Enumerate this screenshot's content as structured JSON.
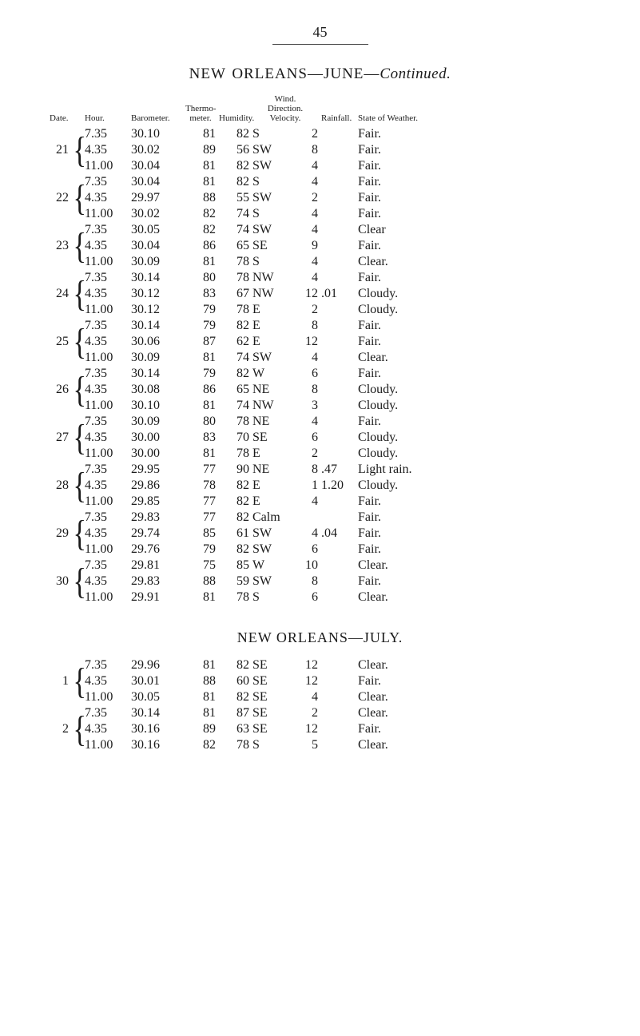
{
  "page_number": "45",
  "title_prefix": "NEW ORLEANS—JUNE—",
  "title_suffix_italic": "Continued.",
  "section2_title": "NEW ORLEANS—JULY.",
  "headers": {
    "date": "Date.",
    "hour": "Hour.",
    "barometer": "Barometer.",
    "thermo": "Thermo-\nmeter.",
    "humidity": "Humidity.",
    "wind": "Wind.",
    "wind_sub": "Direction. Velocity.",
    "rainfall": "Rainfall.",
    "state": "State of Weather."
  },
  "groups1": [
    {
      "date": "21",
      "rows": [
        {
          "hour": "7.35",
          "baro": "30.10",
          "thermo": "81",
          "humid": "82",
          "dir": "S",
          "vel": "2",
          "rain": "",
          "state": "Fair."
        },
        {
          "hour": "4.35",
          "baro": "30.02",
          "thermo": "89",
          "humid": "56",
          "dir": "SW",
          "vel": "8",
          "rain": "",
          "state": "Fair."
        },
        {
          "hour": "11.00",
          "baro": "30.04",
          "thermo": "81",
          "humid": "82",
          "dir": "SW",
          "vel": "4",
          "rain": "",
          "state": "Fair."
        }
      ]
    },
    {
      "date": "22",
      "rows": [
        {
          "hour": "7.35",
          "baro": "30.04",
          "thermo": "81",
          "humid": "82",
          "dir": "S",
          "vel": "4",
          "rain": "",
          "state": "Fair."
        },
        {
          "hour": "4.35",
          "baro": "29.97",
          "thermo": "88",
          "humid": "55",
          "dir": "SW",
          "vel": "2",
          "rain": "",
          "state": "Fair."
        },
        {
          "hour": "11.00",
          "baro": "30.02",
          "thermo": "82",
          "humid": "74",
          "dir": "S",
          "vel": "4",
          "rain": "",
          "state": "Fair."
        }
      ]
    },
    {
      "date": "23",
      "rows": [
        {
          "hour": "7.35",
          "baro": "30.05",
          "thermo": "82",
          "humid": "74",
          "dir": "SW",
          "vel": "4",
          "rain": "",
          "state": "Clear"
        },
        {
          "hour": "4.35",
          "baro": "30.04",
          "thermo": "86",
          "humid": "65",
          "dir": "SE",
          "vel": "9",
          "rain": "",
          "state": "Fair."
        },
        {
          "hour": "11.00",
          "baro": "30.09",
          "thermo": "81",
          "humid": "78",
          "dir": "S",
          "vel": "4",
          "rain": "",
          "state": "Clear."
        }
      ]
    },
    {
      "date": "24",
      "rows": [
        {
          "hour": "7.35",
          "baro": "30.14",
          "thermo": "80",
          "humid": "78",
          "dir": "NW",
          "vel": "4",
          "rain": "",
          "state": "Fair."
        },
        {
          "hour": "4.35",
          "baro": "30.12",
          "thermo": "83",
          "humid": "67",
          "dir": "NW",
          "vel": "12",
          "rain": ".01",
          "state": "Cloudy."
        },
        {
          "hour": "11.00",
          "baro": "30.12",
          "thermo": "79",
          "humid": "78",
          "dir": "E",
          "vel": "2",
          "rain": "",
          "state": "Cloudy."
        }
      ]
    },
    {
      "date": "25",
      "rows": [
        {
          "hour": "7.35",
          "baro": "30.14",
          "thermo": "79",
          "humid": "82",
          "dir": "E",
          "vel": "8",
          "rain": "",
          "state": "Fair."
        },
        {
          "hour": "4.35",
          "baro": "30.06",
          "thermo": "87",
          "humid": "62",
          "dir": "E",
          "vel": "12",
          "rain": "",
          "state": "Fair."
        },
        {
          "hour": "11.00",
          "baro": "30.09",
          "thermo": "81",
          "humid": "74",
          "dir": "SW",
          "vel": "4",
          "rain": "",
          "state": "Clear."
        }
      ]
    },
    {
      "date": "26",
      "rows": [
        {
          "hour": "7.35",
          "baro": "30.14",
          "thermo": "79",
          "humid": "82",
          "dir": "W",
          "vel": "6",
          "rain": "",
          "state": "Fair."
        },
        {
          "hour": "4.35",
          "baro": "30.08",
          "thermo": "86",
          "humid": "65",
          "dir": "NE",
          "vel": "8",
          "rain": "",
          "state": "Cloudy."
        },
        {
          "hour": "11.00",
          "baro": "30.10",
          "thermo": "81",
          "humid": "74",
          "dir": "NW",
          "vel": "3",
          "rain": "",
          "state": "Cloudy."
        }
      ]
    },
    {
      "date": "27",
      "rows": [
        {
          "hour": "7.35",
          "baro": "30.09",
          "thermo": "80",
          "humid": "78",
          "dir": "NE",
          "vel": "4",
          "rain": "",
          "state": "Fair."
        },
        {
          "hour": "4.35",
          "baro": "30.00",
          "thermo": "83",
          "humid": "70",
          "dir": "SE",
          "vel": "6",
          "rain": "",
          "state": "Cloudy."
        },
        {
          "hour": "11.00",
          "baro": "30.00",
          "thermo": "81",
          "humid": "78",
          "dir": "E",
          "vel": "2",
          "rain": "",
          "state": "Cloudy."
        }
      ]
    },
    {
      "date": "28",
      "rows": [
        {
          "hour": "7.35",
          "baro": "29.95",
          "thermo": "77",
          "humid": "90",
          "dir": "NE",
          "vel": "8",
          "rain": ".47",
          "state": "Light rain."
        },
        {
          "hour": "4.35",
          "baro": "29.86",
          "thermo": "78",
          "humid": "82",
          "dir": "E",
          "vel": "1",
          "rain": "1.20",
          "state": "Cloudy."
        },
        {
          "hour": "11.00",
          "baro": "29.85",
          "thermo": "77",
          "humid": "82",
          "dir": "E",
          "vel": "4",
          "rain": "",
          "state": "Fair."
        }
      ]
    },
    {
      "date": "29",
      "rows": [
        {
          "hour": "7.35",
          "baro": "29.83",
          "thermo": "77",
          "humid": "82",
          "dir": "Calm",
          "vel": "",
          "rain": "",
          "state": "Fair."
        },
        {
          "hour": "4.35",
          "baro": "29.74",
          "thermo": "85",
          "humid": "61",
          "dir": "SW",
          "vel": "4",
          "rain": ".04",
          "state": "Fair."
        },
        {
          "hour": "11.00",
          "baro": "29.76",
          "thermo": "79",
          "humid": "82",
          "dir": "SW",
          "vel": "6",
          "rain": "",
          "state": "Fair."
        }
      ]
    },
    {
      "date": "30",
      "rows": [
        {
          "hour": "7.35",
          "baro": "29.81",
          "thermo": "75",
          "humid": "85",
          "dir": "W",
          "vel": "10",
          "rain": "",
          "state": "Clear."
        },
        {
          "hour": "4.35",
          "baro": "29.83",
          "thermo": "88",
          "humid": "59",
          "dir": "SW",
          "vel": "8",
          "rain": "",
          "state": "Fair."
        },
        {
          "hour": "11.00",
          "baro": "29.91",
          "thermo": "81",
          "humid": "78",
          "dir": "S",
          "vel": "6",
          "rain": "",
          "state": "Clear."
        }
      ]
    }
  ],
  "groups2": [
    {
      "date": "1",
      "rows": [
        {
          "hour": "7.35",
          "baro": "29.96",
          "thermo": "81",
          "humid": "82",
          "dir": "SE",
          "vel": "12",
          "rain": "",
          "state": "Clear."
        },
        {
          "hour": "4.35",
          "baro": "30.01",
          "thermo": "88",
          "humid": "60",
          "dir": "SE",
          "vel": "12",
          "rain": "",
          "state": "Fair."
        },
        {
          "hour": "11.00",
          "baro": "30.05",
          "thermo": "81",
          "humid": "82",
          "dir": "SE",
          "vel": "4",
          "rain": "",
          "state": "Clear."
        }
      ]
    },
    {
      "date": "2",
      "rows": [
        {
          "hour": "7.35",
          "baro": "30.14",
          "thermo": "81",
          "humid": "87",
          "dir": "SE",
          "vel": "2",
          "rain": "",
          "state": "Clear."
        },
        {
          "hour": "4.35",
          "baro": "30.16",
          "thermo": "89",
          "humid": "63",
          "dir": "SE",
          "vel": "12",
          "rain": "",
          "state": "Fair."
        },
        {
          "hour": "11.00",
          "baro": "30.16",
          "thermo": "82",
          "humid": "78",
          "dir": "S",
          "vel": "5",
          "rain": "",
          "state": "Clear."
        }
      ]
    }
  ]
}
